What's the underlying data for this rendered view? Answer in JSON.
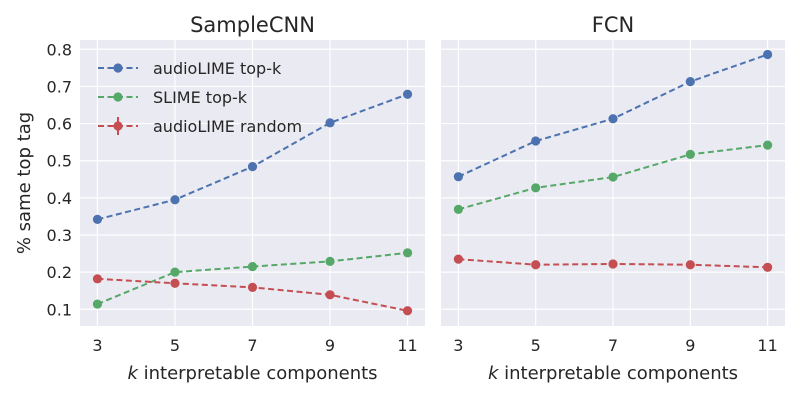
{
  "chart_data": {
    "type": "line",
    "shared_ylabel": "% same top tag",
    "ylim": [
      0.055,
      0.825
    ],
    "yticks": [
      0.1,
      0.2,
      0.3,
      0.4,
      0.5,
      0.6,
      0.7,
      0.8
    ],
    "xlim": [
      2.55,
      11.45
    ],
    "xticks": [
      3,
      5,
      7,
      9,
      11
    ],
    "xlabel_var": "k",
    "xlabel_rest": " interpretable components",
    "grid": true,
    "legend": {
      "placement": "top-left of first panel",
      "entries": [
        {
          "name": "audioLIME top-k",
          "color": "#4c72b0"
        },
        {
          "name": "SLIME top-k",
          "color": "#55a868"
        },
        {
          "name": "audioLIME random",
          "color": "#c44e52",
          "errorbar": true
        }
      ]
    },
    "panels": [
      {
        "title": "SampleCNN",
        "x": [
          3,
          5,
          7,
          9,
          11
        ],
        "series": [
          {
            "name": "audioLIME top-k",
            "color": "#4c72b0",
            "values": [
              0.342,
              0.395,
              0.484,
              0.602,
              0.679
            ]
          },
          {
            "name": "SLIME top-k",
            "color": "#55a868",
            "values": [
              0.114,
              0.2,
              0.215,
              0.229,
              0.252
            ]
          },
          {
            "name": "audioLIME random",
            "color": "#c44e52",
            "values": [
              0.182,
              0.17,
              0.159,
              0.139,
              0.096
            ]
          }
        ]
      },
      {
        "title": "FCN",
        "x": [
          3,
          5,
          7,
          9,
          11
        ],
        "series": [
          {
            "name": "audioLIME top-k",
            "color": "#4c72b0",
            "values": [
              0.457,
              0.553,
              0.613,
              0.713,
              0.786
            ]
          },
          {
            "name": "SLIME top-k",
            "color": "#55a868",
            "values": [
              0.369,
              0.427,
              0.456,
              0.517,
              0.542
            ]
          },
          {
            "name": "audioLIME random",
            "color": "#c44e52",
            "values": [
              0.235,
              0.22,
              0.222,
              0.22,
              0.213
            ]
          }
        ]
      }
    ]
  }
}
